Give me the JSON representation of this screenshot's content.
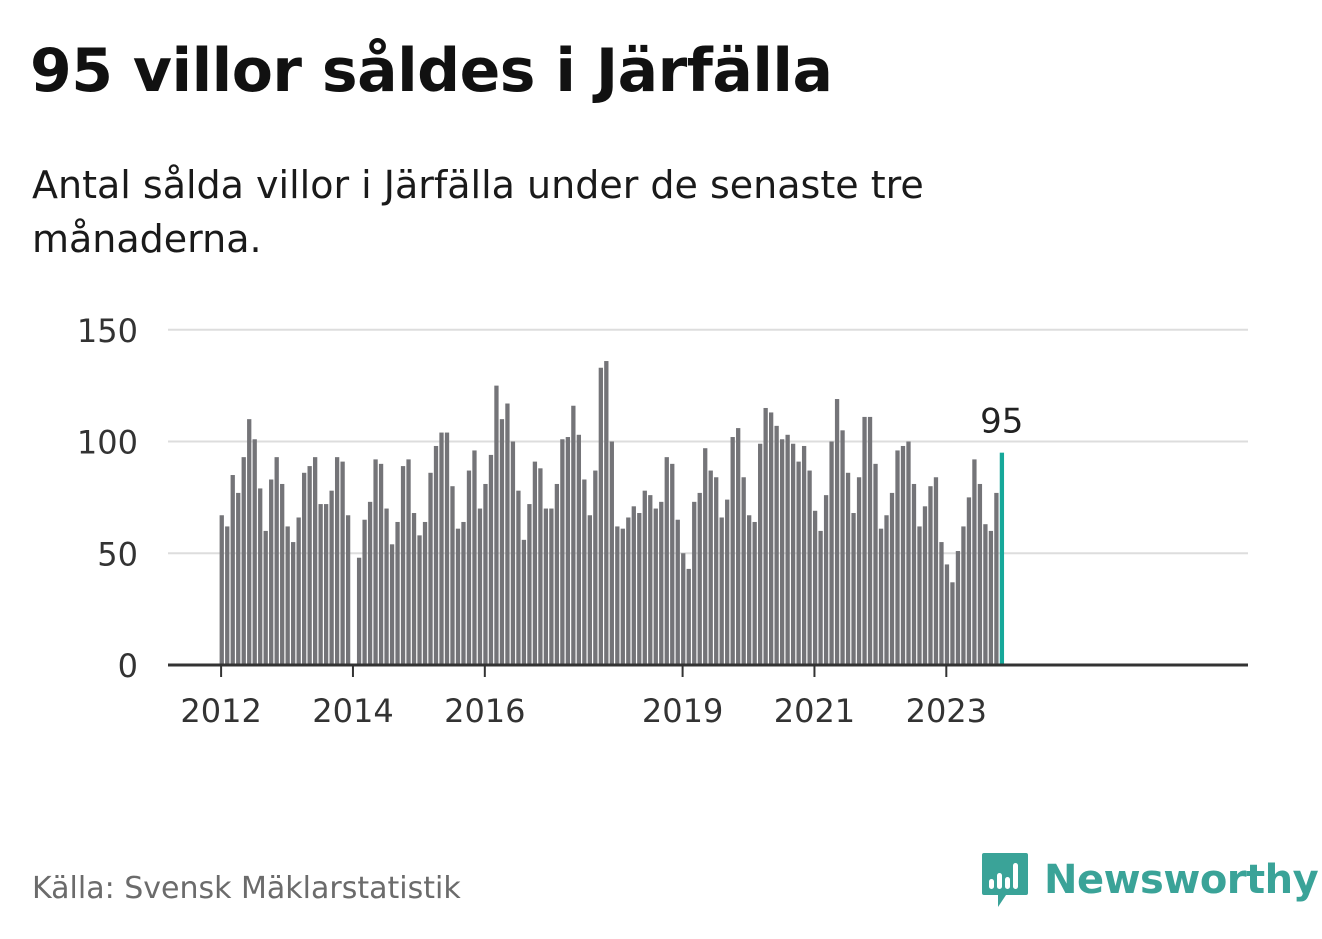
{
  "header": {
    "title": "95 villor såldes i Järfälla",
    "subtitle": "Antal sålda villor i Järfälla under de senaste tre månaderna."
  },
  "footer": {
    "source": "Källa: Svensk Mäklarstatistik",
    "brand": "Newsworthy",
    "brand_icon": "bar-chart-icon"
  },
  "colors": {
    "bar": "#747478",
    "highlight": "#16a89a",
    "grid": "#dddddd",
    "axis": "#333333",
    "brand": "#3aa398"
  },
  "chart_data": {
    "type": "bar",
    "title": "95 villor såldes i Järfälla",
    "xlabel": "",
    "ylabel": "",
    "ylim": [
      0,
      150
    ],
    "yticks": [
      0,
      50,
      100,
      150
    ],
    "xtick_labels": [
      {
        "label": "2012",
        "index": 0
      },
      {
        "label": "2014",
        "index": 24
      },
      {
        "label": "2016",
        "index": 48
      },
      {
        "label": "2019",
        "index": 84
      },
      {
        "label": "2021",
        "index": 108
      },
      {
        "label": "2023",
        "index": 132
      }
    ],
    "highlight_label": "95",
    "values": [
      67,
      62,
      85,
      77,
      93,
      110,
      101,
      79,
      60,
      83,
      93,
      81,
      62,
      55,
      66,
      86,
      89,
      93,
      72,
      72,
      78,
      93,
      91,
      67,
      null,
      48,
      65,
      73,
      92,
      90,
      70,
      54,
      64,
      89,
      92,
      68,
      58,
      64,
      86,
      98,
      104,
      104,
      80,
      61,
      64,
      87,
      96,
      70,
      81,
      94,
      125,
      110,
      117,
      100,
      78,
      56,
      72,
      91,
      88,
      70,
      70,
      81,
      101,
      102,
      116,
      103,
      83,
      67,
      87,
      133,
      136,
      100,
      62,
      61,
      66,
      71,
      68,
      78,
      76,
      70,
      73,
      93,
      90,
      65,
      50,
      43,
      73,
      77,
      97,
      87,
      84,
      66,
      74,
      102,
      106,
      84,
      67,
      64,
      99,
      115,
      113,
      107,
      101,
      103,
      99,
      91,
      98,
      87,
      69,
      60,
      76,
      100,
      119,
      105,
      86,
      68,
      84,
      111,
      111,
      90,
      61,
      67,
      77,
      96,
      98,
      100,
      81,
      62,
      71,
      80,
      84,
      55,
      45,
      37,
      51,
      62,
      75,
      92,
      81,
      63,
      60,
      77,
      95
    ]
  }
}
